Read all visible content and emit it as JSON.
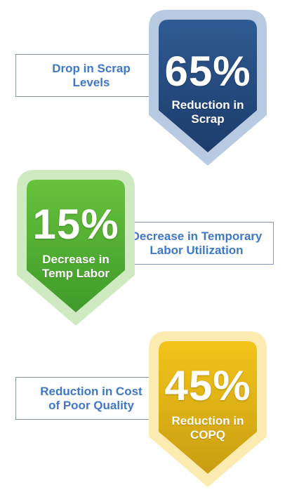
{
  "stats": [
    {
      "value": "65%",
      "caption_line1": "Reduction in",
      "caption_line2": "Scrap",
      "label_line1": "Drop in Scrap",
      "label_line2": "Levels",
      "color_top": "#2f5a93",
      "color_bottom": "#1c3c6b",
      "glow": "#b8c9e2"
    },
    {
      "value": "15%",
      "caption_line1": "Decrease in",
      "caption_line2": "Temp Labor",
      "label_line1": "Decrease in Temporary",
      "label_line2": "Labor Utilization",
      "color_top": "#67c23c",
      "color_bottom": "#3f9a2a",
      "glow": "#cfe9c0"
    },
    {
      "value": "45%",
      "caption_line1": "Reduction in",
      "caption_line2": "COPQ",
      "label_line1": "Reduction in Cost",
      "label_line2": "of Poor Quality",
      "color_top": "#f3c41a",
      "color_bottom": "#c99d12",
      "glow": "#fbebb0"
    }
  ]
}
